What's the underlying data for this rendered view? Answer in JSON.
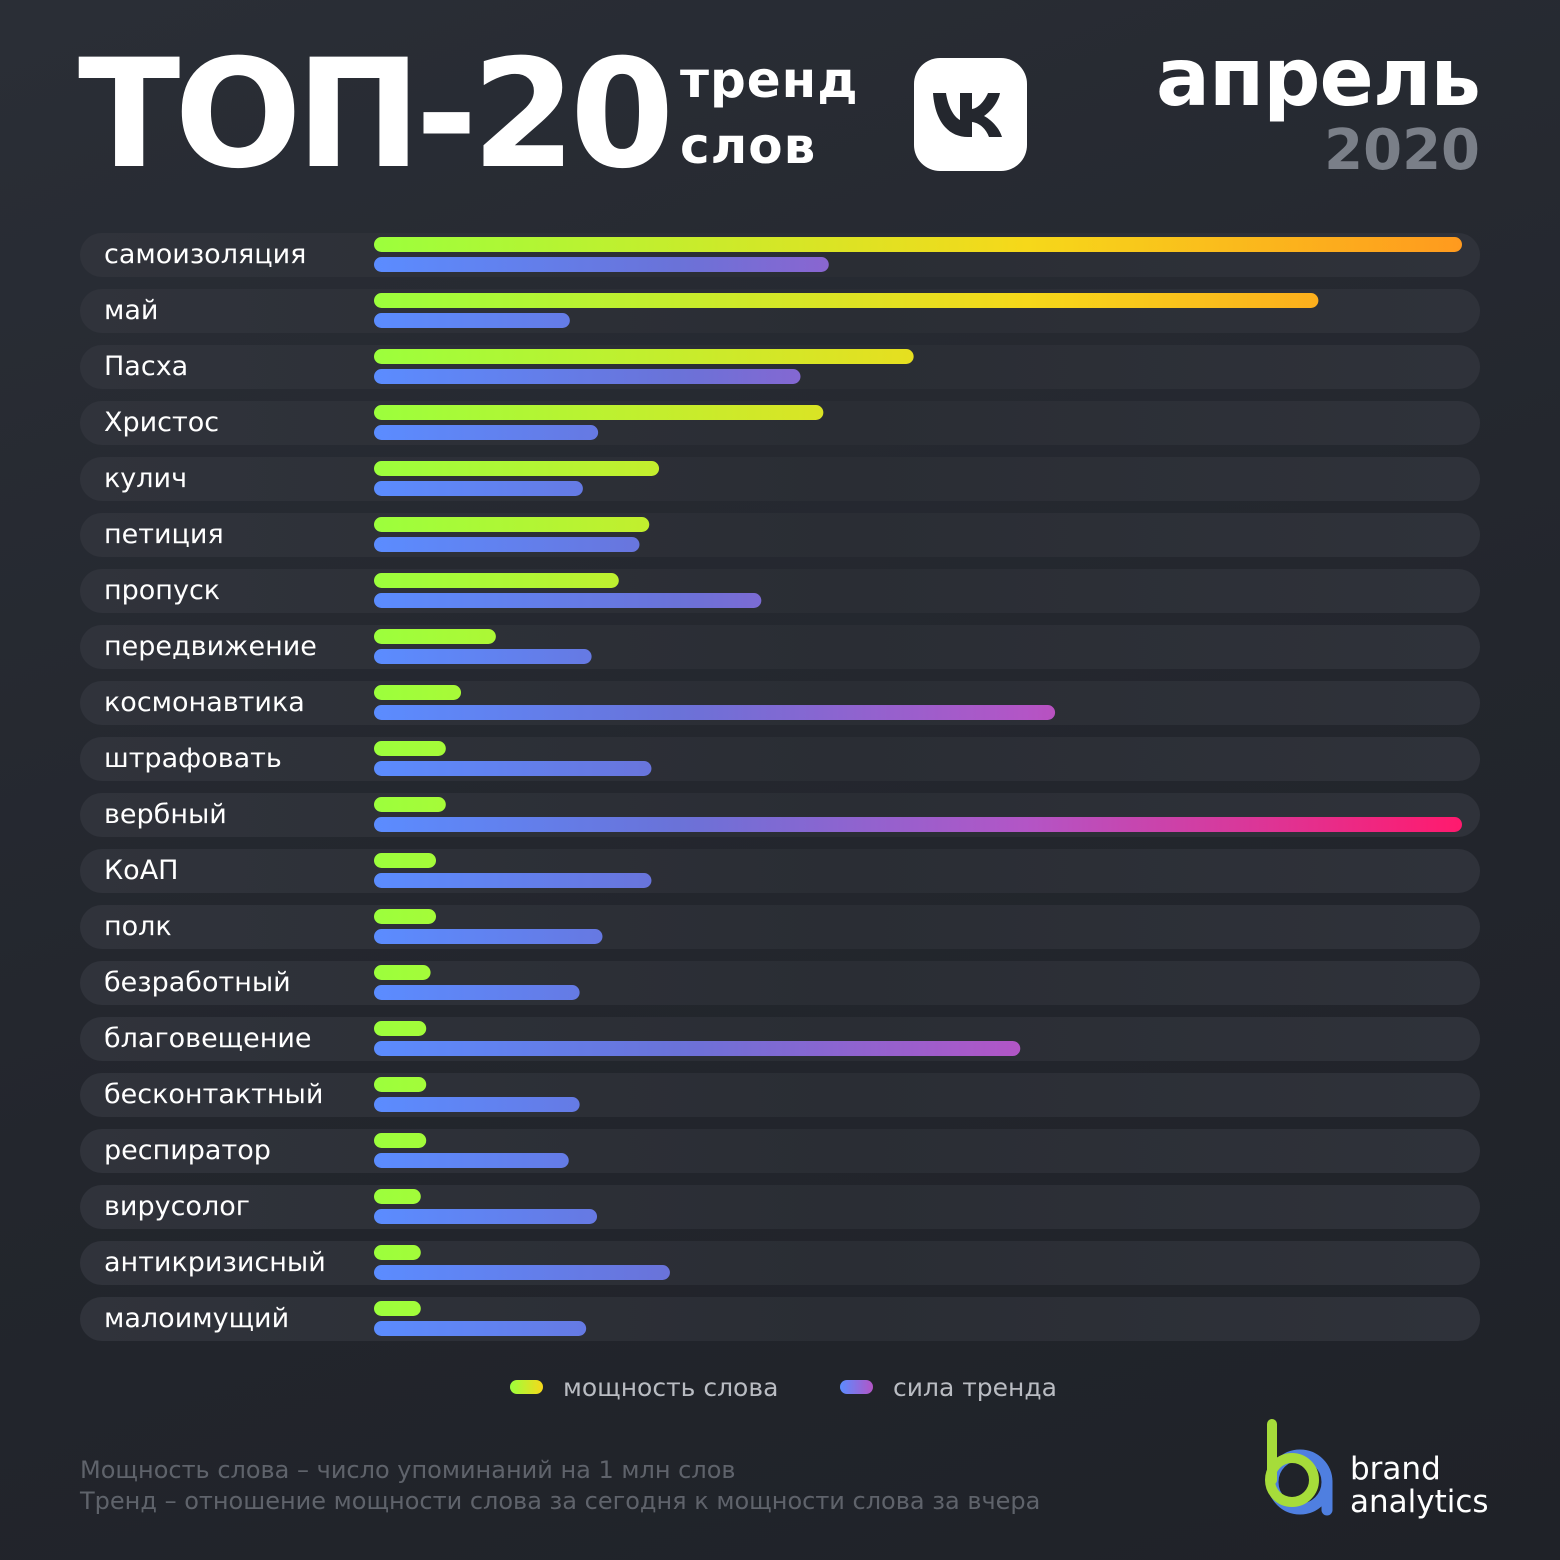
{
  "header": {
    "title": "ТОП-20",
    "subtitle_line1": "тренд",
    "subtitle_line2": "слов",
    "month": "апрель",
    "year": "2020"
  },
  "legend": {
    "power_label": "мощность слова",
    "trend_label": "сила тренда"
  },
  "notes": {
    "line1": "Мощность слова – число упоминаний на 1 млн слов",
    "line2": "Тренд – отношение мощности слова  за сегодня к мощности слова за вчера"
  },
  "brand": {
    "line1": "brand",
    "line2": "analytics"
  },
  "colors": {
    "background": "#24272e",
    "row": "#2d3038",
    "power_start": "#9cff3c",
    "power_mid": "#f6d81a",
    "power_end": "#ff9a1e",
    "trend_start": "#5b8cff",
    "trend_mid": "#b355c6",
    "trend_end": "#ff1a6e"
  },
  "chart_data": {
    "type": "bar",
    "orientation": "horizontal",
    "categories": [
      "самоизоляция",
      "май",
      "Пасха",
      "Христос",
      "кулич",
      "петиция",
      "пропуск",
      "передвижение",
      "космонавтика",
      "штрафовать",
      "вербный",
      "КоАП",
      "полк",
      "безработный",
      "благовещение",
      "бесконтактный",
      "респиратор",
      "вирусолог",
      "антикризисный",
      "малоимущий"
    ],
    "series": [
      {
        "name": "мощность слова",
        "values": [
          100,
          86.8,
          49.6,
          41.3,
          26.2,
          25.3,
          22.5,
          11.2,
          8.0,
          6.6,
          6.6,
          5.7,
          5.7,
          5.2,
          4.8,
          4.8,
          4.8,
          4.3,
          4.3,
          4.3
        ]
      },
      {
        "name": "сила тренда",
        "values": [
          41.8,
          18.0,
          39.2,
          20.6,
          19.2,
          24.4,
          35.6,
          20.0,
          62.6,
          25.5,
          100,
          25.5,
          21.0,
          18.9,
          59.4,
          18.9,
          17.9,
          20.5,
          27.2,
          19.5
        ]
      }
    ],
    "legend_position": "bottom",
    "grid": false
  }
}
